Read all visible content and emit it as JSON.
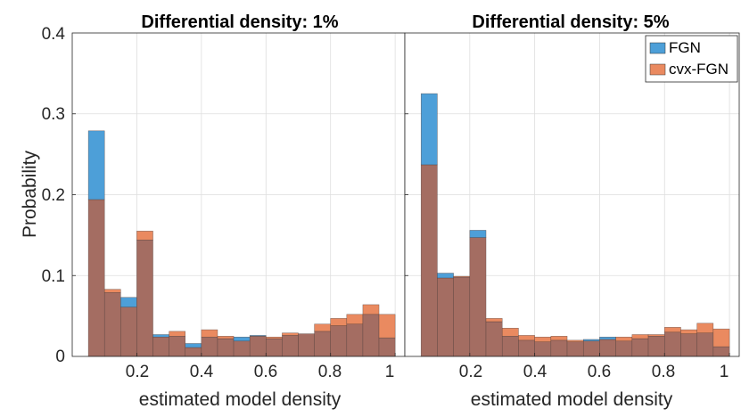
{
  "figure": {
    "ylabel": "Probability",
    "yticks": [
      "0",
      "0.1",
      "0.2",
      "0.3",
      "0.4"
    ],
    "xticks": [
      "0.2",
      "0.4",
      "0.6",
      "0.8",
      "1"
    ]
  },
  "legend": {
    "position": "top-right",
    "entries": [
      {
        "name": "FGN",
        "color": "#4d9fd8"
      },
      {
        "name": "cvx-FGN",
        "color": "#ea8a60"
      }
    ]
  },
  "colors": {
    "FGN": "#4d9fd8",
    "cvx_FGN": "#ea8a60",
    "overlap": "#a46d62"
  },
  "chart_data": [
    {
      "type": "bar",
      "title": "Differential density: 1%",
      "xlabel": "estimated model density",
      "ylabel": "Probability",
      "xlim": [
        0,
        1.03
      ],
      "ylim": [
        0,
        0.4
      ],
      "bin_width": 0.05,
      "bin_starts": [
        0.05,
        0.1,
        0.15,
        0.2,
        0.25,
        0.3,
        0.35,
        0.4,
        0.45,
        0.5,
        0.55,
        0.6,
        0.65,
        0.7,
        0.75,
        0.8,
        0.85,
        0.9,
        0.95
      ],
      "series": [
        {
          "name": "FGN",
          "values": [
            0.279,
            0.079,
            0.073,
            0.144,
            0.027,
            0.025,
            0.016,
            0.024,
            0.022,
            0.024,
            0.026,
            0.022,
            0.026,
            0.028,
            0.031,
            0.038,
            0.04,
            0.052,
            0.023
          ]
        },
        {
          "name": "cvx-FGN",
          "values": [
            0.194,
            0.083,
            0.061,
            0.155,
            0.024,
            0.031,
            0.011,
            0.033,
            0.025,
            0.019,
            0.025,
            0.024,
            0.029,
            0.028,
            0.04,
            0.047,
            0.052,
            0.064,
            0.052
          ]
        }
      ]
    },
    {
      "type": "bar",
      "title": "Differential density: 5%",
      "xlabel": "estimated model density",
      "ylabel": "",
      "xlim": [
        0,
        1.03
      ],
      "ylim": [
        0,
        0.4
      ],
      "bin_width": 0.05,
      "bin_starts": [
        0.05,
        0.1,
        0.15,
        0.2,
        0.25,
        0.3,
        0.35,
        0.4,
        0.45,
        0.5,
        0.55,
        0.6,
        0.65,
        0.7,
        0.75,
        0.8,
        0.85,
        0.9,
        0.95
      ],
      "series": [
        {
          "name": "FGN",
          "values": [
            0.325,
            0.103,
            0.098,
            0.156,
            0.043,
            0.025,
            0.02,
            0.018,
            0.02,
            0.018,
            0.021,
            0.024,
            0.019,
            0.022,
            0.025,
            0.03,
            0.028,
            0.029,
            0.012
          ]
        },
        {
          "name": "cvx-FGN",
          "values": [
            0.237,
            0.097,
            0.099,
            0.147,
            0.047,
            0.035,
            0.026,
            0.024,
            0.025,
            0.02,
            0.019,
            0.021,
            0.024,
            0.027,
            0.027,
            0.036,
            0.033,
            0.041,
            0.034
          ]
        }
      ]
    }
  ]
}
